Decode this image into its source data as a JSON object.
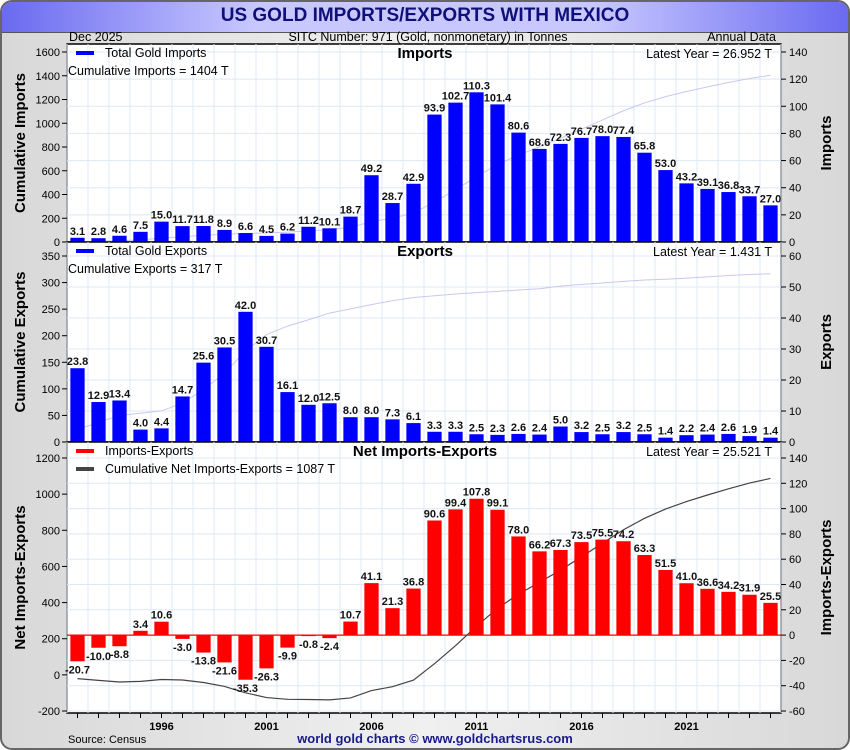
{
  "header": {
    "title": "US GOLD IMPORTS/EXPORTS WITH MEXICO",
    "date": "Dec  2025",
    "subtitle": "SITC Number: 971 (Gold, nonmonetary) in Tonnes",
    "frequency": "Annual Data"
  },
  "footer": {
    "source": "Source: Census",
    "credit": "world gold charts © www.goldchartsrus.com"
  },
  "colors": {
    "imports": "#0000ff",
    "exports": "#0000ff",
    "net": "#ff0000",
    "cum_light": "#c8c8f0",
    "cum_net": "#444444"
  },
  "chart_data": [
    {
      "type": "bar",
      "title": "Imports",
      "legend": "Total Gold Imports",
      "cumulative_label": "Cumulative Imports = 1404 T",
      "latest_label": "Latest Year = 26.952 T",
      "ylabel_left": "Cumulative Imports",
      "ylabel_right": "Imports",
      "ylim_left": [
        0,
        1600
      ],
      "yticks_left": [
        0,
        200,
        400,
        600,
        800,
        1000,
        1200,
        1400,
        1600
      ],
      "ylim_right": [
        0,
        140
      ],
      "yticks_right": [
        0,
        20,
        40,
        60,
        80,
        100,
        120,
        140
      ],
      "x": [
        1992,
        1993,
        1994,
        1995,
        1996,
        1997,
        1998,
        1999,
        2000,
        2001,
        2002,
        2003,
        2004,
        2005,
        2006,
        2007,
        2008,
        2009,
        2010,
        2011,
        2012,
        2013,
        2014,
        2015,
        2016,
        2017,
        2018,
        2019,
        2020,
        2021,
        2022,
        2023,
        2024,
        2025
      ],
      "values": [
        3.1,
        2.8,
        4.6,
        7.5,
        15.0,
        11.7,
        11.8,
        8.9,
        6.6,
        4.5,
        6.2,
        11.2,
        10.1,
        18.7,
        49.2,
        28.7,
        42.9,
        93.9,
        102.7,
        110.3,
        101.4,
        80.6,
        68.6,
        72.3,
        76.7,
        78.0,
        77.4,
        65.8,
        53.0,
        43.2,
        39.1,
        36.8,
        33.7,
        27.0
      ],
      "cumulative_series": "running sum of values (left axis)",
      "grid": true,
      "legend_position": "top-left"
    },
    {
      "type": "bar",
      "title": "Exports",
      "legend": "Total Gold Exports",
      "cumulative_label": "Cumulative Exports = 317 T",
      "latest_label": "Latest Year = 1.431 T",
      "ylabel_left": "Cumulative Exports",
      "ylabel_right": "Exports",
      "ylim_left": [
        0,
        350
      ],
      "yticks_left": [
        0,
        50,
        100,
        150,
        200,
        250,
        300,
        350
      ],
      "ylim_right": [
        0,
        60
      ],
      "yticks_right": [
        0,
        10,
        20,
        30,
        40,
        50,
        60
      ],
      "x": [
        1992,
        1993,
        1994,
        1995,
        1996,
        1997,
        1998,
        1999,
        2000,
        2001,
        2002,
        2003,
        2004,
        2005,
        2006,
        2007,
        2008,
        2009,
        2010,
        2011,
        2012,
        2013,
        2014,
        2015,
        2016,
        2017,
        2018,
        2019,
        2020,
        2021,
        2022,
        2023,
        2024,
        2025
      ],
      "values": [
        23.8,
        12.9,
        13.4,
        4.0,
        4.4,
        14.7,
        25.6,
        30.5,
        42.0,
        30.7,
        16.1,
        12.0,
        12.5,
        8.0,
        8.0,
        7.3,
        6.1,
        3.3,
        3.3,
        2.5,
        2.3,
        2.6,
        2.4,
        5.0,
        3.2,
        2.5,
        3.2,
        2.5,
        1.4,
        2.2,
        2.4,
        2.6,
        1.9,
        1.4
      ],
      "grid": true,
      "legend_position": "top-left"
    },
    {
      "type": "bar",
      "title": "Net Imports-Exports",
      "legend": "Imports-Exports",
      "legend2": "Cumulative Net Imports-Exports = 1087 T",
      "latest_label": "Latest Year = 25.521 T",
      "ylabel_left": "Net Imports-Exports",
      "ylabel_right": "Imports-Exports",
      "ylim_left": [
        -200,
        1200
      ],
      "yticks_left": [
        -200,
        0,
        200,
        400,
        600,
        800,
        1000,
        1200
      ],
      "ylim_right": [
        -60,
        140
      ],
      "yticks_right": [
        -60,
        -40,
        -20,
        0,
        20,
        40,
        60,
        80,
        100,
        120,
        140
      ],
      "x": [
        1992,
        1993,
        1994,
        1995,
        1996,
        1997,
        1998,
        1999,
        2000,
        2001,
        2002,
        2003,
        2004,
        2005,
        2006,
        2007,
        2008,
        2009,
        2010,
        2011,
        2012,
        2013,
        2014,
        2015,
        2016,
        2017,
        2018,
        2019,
        2020,
        2021,
        2022,
        2023,
        2024,
        2025
      ],
      "values": [
        -20.7,
        -10.0,
        -8.8,
        3.4,
        10.6,
        -3.0,
        -13.8,
        -21.6,
        -35.3,
        -26.3,
        -9.9,
        -0.8,
        -2.4,
        10.7,
        41.1,
        21.3,
        36.8,
        90.6,
        99.4,
        107.8,
        99.1,
        78.0,
        66.2,
        67.3,
        73.5,
        75.5,
        74.2,
        63.3,
        51.5,
        41.0,
        36.6,
        34.2,
        31.9,
        25.5
      ],
      "grid": true,
      "legend_position": "top-left"
    }
  ],
  "xaxis": {
    "tick_labels": [
      "1996",
      "2001",
      "2006",
      "2011",
      "2016",
      "2021"
    ],
    "tick_years": [
      1996,
      2001,
      2006,
      2011,
      2016,
      2021
    ]
  }
}
